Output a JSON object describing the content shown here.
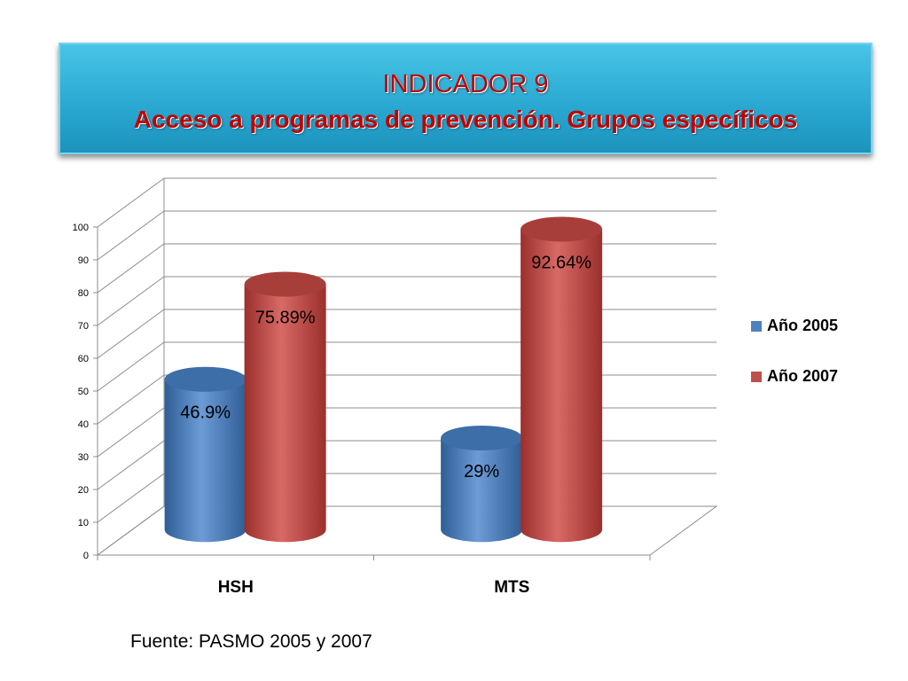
{
  "title": {
    "line1": "INDICADOR 9",
    "line2": "Acceso a programas de prevención. Grupos específicos"
  },
  "source": "Fuente: PASMO 2005 y 2007",
  "colors": {
    "series_2005": "#4f81bd",
    "series_2007": "#c0504d",
    "title_text": "#c00000",
    "banner": "#2aa9d2"
  },
  "chart_data": {
    "type": "bar",
    "categories": [
      "HSH",
      "MTS"
    ],
    "series": [
      {
        "name": "Año 2005",
        "values": [
          46.9,
          29
        ],
        "labels": [
          "46.9%",
          "29%"
        ]
      },
      {
        "name": "Año 2007",
        "values": [
          75.89,
          92.64
        ],
        "labels": [
          "75.89%",
          "92.64%"
        ]
      }
    ],
    "ylim": [
      0,
      100
    ],
    "yticks": [
      0,
      10,
      20,
      30,
      40,
      50,
      60,
      70,
      80,
      90,
      100
    ],
    "grid": true,
    "legend": "right",
    "style": "3d-cylinder"
  }
}
